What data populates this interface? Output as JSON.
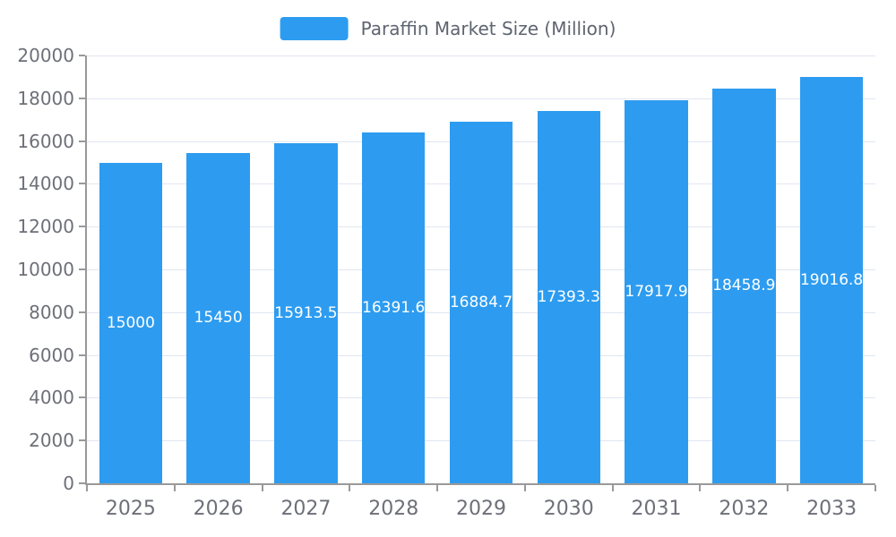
{
  "chart_data": {
    "type": "bar",
    "title": "Paraffin Market Size (Million)",
    "legend_position": "top",
    "categories": [
      "2025",
      "2026",
      "2027",
      "2028",
      "2029",
      "2030",
      "2031",
      "2032",
      "2033"
    ],
    "series": [
      {
        "name": "Paraffin Market Size (Million)",
        "values": [
          15000,
          15450,
          15913.5,
          16391.6,
          16884.7,
          17393.3,
          17917.9,
          18458.9,
          19016.8
        ]
      }
    ],
    "value_labels": [
      "15000",
      "15450",
      "15913.5",
      "16391.6",
      "16884.7",
      "17393.3",
      "17917.9",
      "18458.9",
      "19016.8"
    ],
    "xlabel": "",
    "ylabel": "",
    "ylim": [
      0,
      20000
    ],
    "ytick_step": 2000,
    "grid": true,
    "bar_width_ratio": 0.72,
    "colors": {
      "bar": "#2D9CF0",
      "grid_line": "#E0E6F1",
      "axis_line": "#999999",
      "axis_text": "#6E7079",
      "legend_text": "#5E6470",
      "value_label_text": "#FFFFFF"
    }
  }
}
